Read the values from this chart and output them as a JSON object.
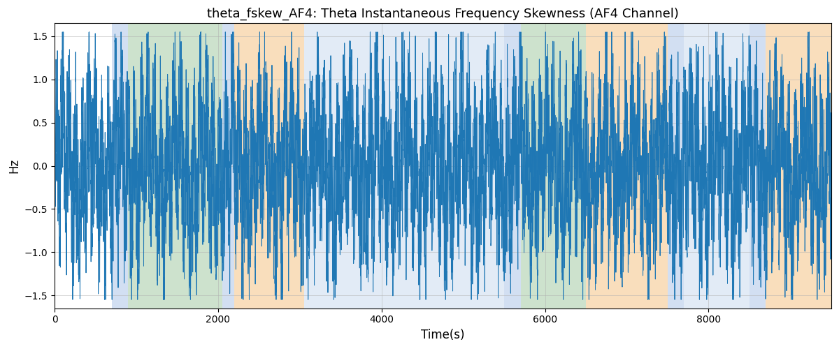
{
  "title": "theta_fskew_AF4: Theta Instantaneous Frequency Skewness (AF4 Channel)",
  "xlabel": "Time(s)",
  "ylabel": "Hz",
  "ylim": [
    -1.65,
    1.65
  ],
  "xlim": [
    0,
    9500
  ],
  "line_color": "#1f77b4",
  "line_width": 0.7,
  "bg_bands": [
    {
      "xstart": 0,
      "xend": 700,
      "color": "#ffffff",
      "alpha": 0.0
    },
    {
      "xstart": 700,
      "xend": 900,
      "color": "#aec6e8",
      "alpha": 0.55
    },
    {
      "xstart": 900,
      "xend": 2050,
      "color": "#90c090",
      "alpha": 0.45
    },
    {
      "xstart": 2050,
      "xend": 2200,
      "color": "#aec6e8",
      "alpha": 0.55
    },
    {
      "xstart": 2200,
      "xend": 3050,
      "color": "#f5c990",
      "alpha": 0.6
    },
    {
      "xstart": 3050,
      "xend": 5500,
      "color": "#aec6e8",
      "alpha": 0.35
    },
    {
      "xstart": 5500,
      "xend": 5700,
      "color": "#aec6e8",
      "alpha": 0.55
    },
    {
      "xstart": 5700,
      "xend": 5800,
      "color": "#90c090",
      "alpha": 0.45
    },
    {
      "xstart": 5800,
      "xend": 6500,
      "color": "#90c090",
      "alpha": 0.45
    },
    {
      "xstart": 6500,
      "xend": 7500,
      "color": "#f5c990",
      "alpha": 0.6
    },
    {
      "xstart": 7500,
      "xend": 7700,
      "color": "#aec6e8",
      "alpha": 0.55
    },
    {
      "xstart": 7700,
      "xend": 8500,
      "color": "#aec6e8",
      "alpha": 0.35
    },
    {
      "xstart": 8500,
      "xend": 8700,
      "color": "#aec6e8",
      "alpha": 0.55
    },
    {
      "xstart": 8700,
      "xend": 9500,
      "color": "#f5c990",
      "alpha": 0.6
    }
  ],
  "grid_color": "#b0b0b0",
  "grid_alpha": 0.7,
  "seed": 42,
  "title_fontsize": 13
}
